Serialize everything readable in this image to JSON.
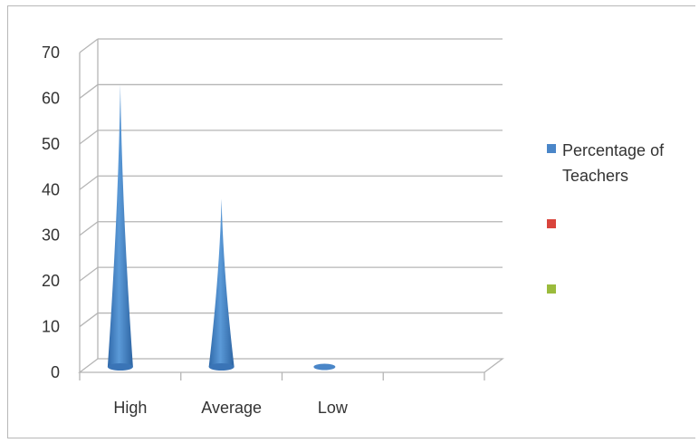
{
  "chart_data": {
    "type": "bar",
    "bar_shape": "cone",
    "categories": [
      "High",
      "Average",
      "Low",
      ""
    ],
    "series": [
      {
        "name": "Percentage of Teachers",
        "color": "#4a86c8",
        "values": [
          62,
          37,
          1,
          0
        ]
      },
      {
        "name": "",
        "color": "#d9443c",
        "values": [
          0,
          0,
          0,
          0
        ]
      },
      {
        "name": "",
        "color": "#9bbb3c",
        "values": [
          0,
          0,
          0,
          0
        ]
      }
    ],
    "title": "",
    "xlabel": "",
    "ylabel": "",
    "ylim": [
      0,
      70
    ],
    "yticks": [
      "0",
      "10",
      "20",
      "30",
      "40",
      "50",
      "60",
      "70"
    ],
    "grid": true,
    "legend_position": "right"
  }
}
